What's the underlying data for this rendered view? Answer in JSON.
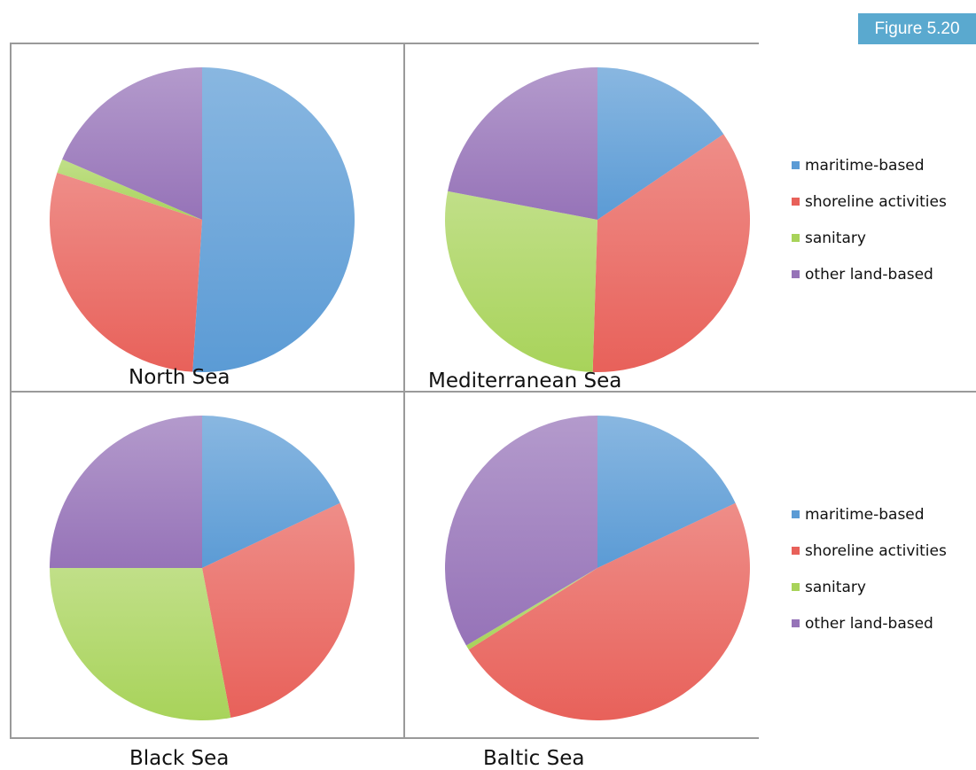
{
  "figure_label": "Figure 5.20",
  "colors": {
    "maritime-based": "#5b9bd5",
    "shoreline activities": "#e8615a",
    "sanitary": "#a8d35a",
    "other land-based": "#9673b8"
  },
  "legends": [
    [
      "maritime-based",
      "shoreline activities",
      "sanitary",
      "other land-based"
    ],
    [
      "maritime-based",
      "shoreline activities",
      "sanitary",
      "other land-based"
    ]
  ],
  "chart_data": [
    {
      "type": "pie",
      "title": "North Sea",
      "labels": [
        "maritime-based",
        "shoreline activities",
        "sanitary",
        "other land-based"
      ],
      "values": [
        51,
        29,
        1.5,
        18.5
      ]
    },
    {
      "type": "pie",
      "title": "Mediterranean Sea",
      "labels": [
        "maritime-based",
        "shoreline activities",
        "sanitary",
        "other land-based"
      ],
      "values": [
        15.5,
        35,
        27.5,
        22
      ]
    },
    {
      "type": "pie",
      "title": "Black Sea",
      "labels": [
        "maritime-based",
        "shoreline activities",
        "sanitary",
        "other land-based"
      ],
      "values": [
        18,
        29,
        28,
        25
      ]
    },
    {
      "type": "pie",
      "title": "Baltic Sea",
      "labels": [
        "maritime-based",
        "shoreline activities",
        "sanitary",
        "other land-based"
      ],
      "values": [
        18,
        48,
        0.5,
        33.5
      ]
    }
  ]
}
